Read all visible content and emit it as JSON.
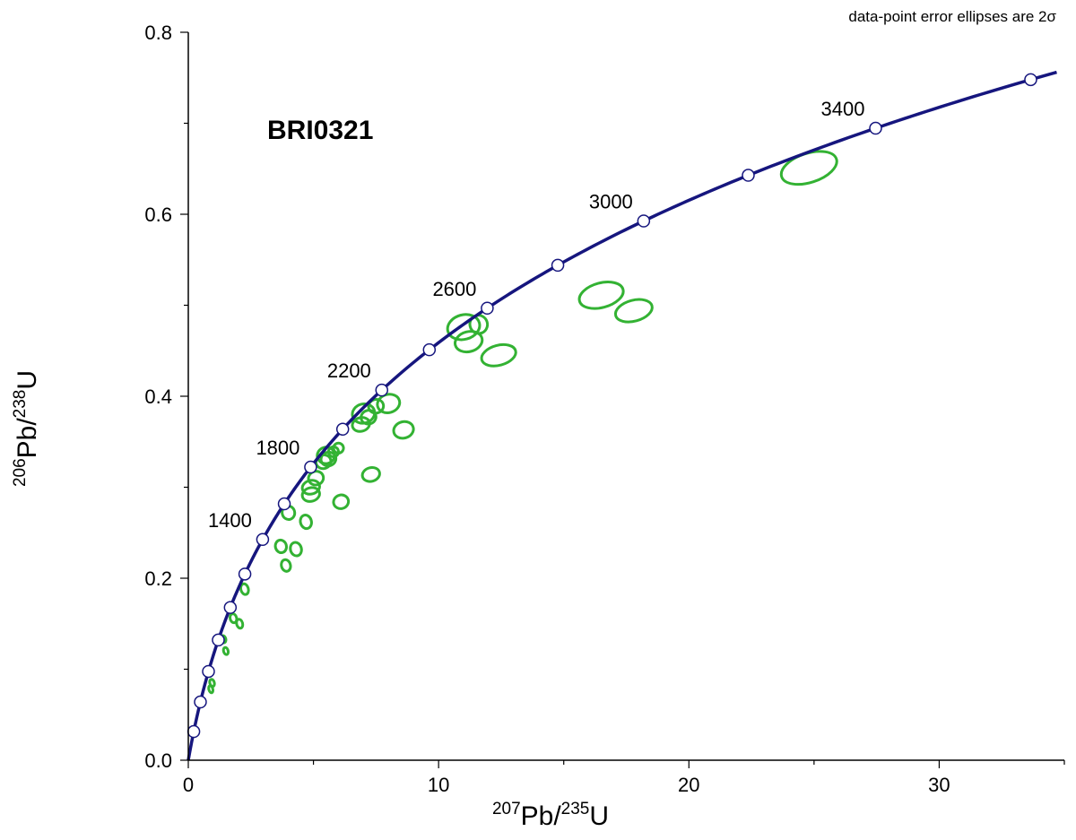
{
  "chart_data": {
    "type": "scatter",
    "title": "",
    "sample_label": "BRI0321",
    "annotation": "data-point error ellipses are 2σ",
    "xlabel": {
      "pb_mass": "207",
      "pb": "Pb/",
      "u_mass": "235",
      "u": "U"
    },
    "ylabel": {
      "pb_mass": "206",
      "pb": "Pb/",
      "u_mass": "238",
      "u": "U"
    },
    "xlim": [
      0,
      35
    ],
    "ylim": [
      0,
      0.8
    ],
    "x_ticks": [
      {
        "value": 0,
        "label": "0"
      },
      {
        "value": 10,
        "label": "10"
      },
      {
        "value": 20,
        "label": "20"
      },
      {
        "value": 30,
        "label": "30"
      }
    ],
    "y_ticks": [
      {
        "value": 0,
        "label": "0.0"
      },
      {
        "value": 0.2,
        "label": "0.2"
      },
      {
        "value": 0.4,
        "label": "0.4"
      },
      {
        "value": 0.6,
        "label": "0.6"
      },
      {
        "value": 0.8,
        "label": "0.8"
      }
    ],
    "grid": false,
    "colors": {
      "concordia": "#16167e",
      "ellipse": "#33b233",
      "marker_fill": "#ffffff",
      "marker_stroke": "#16167e",
      "axis": "#000000"
    },
    "concordia": {
      "age_range_ma": [
        0,
        3750
      ],
      "decay_constants": {
        "U238": 1.55125e-10,
        "U235": 9.8485e-10
      },
      "markers_ma": [
        200,
        400,
        600,
        800,
        1000,
        1200,
        1400,
        1600,
        1800,
        2000,
        2200,
        2400,
        2600,
        2800,
        3000,
        3200,
        3400,
        3600
      ],
      "labeled_ages": [
        {
          "age": 1400,
          "label": "1400"
        },
        {
          "age": 1800,
          "label": "1800"
        },
        {
          "age": 2200,
          "label": "2200"
        },
        {
          "age": 2600,
          "label": "2600"
        },
        {
          "age": 3000,
          "label": "3000"
        },
        {
          "age": 3400,
          "label": "3400"
        }
      ]
    },
    "ellipses": [
      {
        "x": 24.8,
        "y": 0.651,
        "rx": 1.15,
        "ry": 0.016,
        "angle": 18
      },
      {
        "x": 16.5,
        "y": 0.511,
        "rx": 0.9,
        "ry": 0.0135,
        "angle": 15
      },
      {
        "x": 17.8,
        "y": 0.494,
        "rx": 0.75,
        "ry": 0.0115,
        "angle": 15
      },
      {
        "x": 11.0,
        "y": 0.476,
        "rx": 0.65,
        "ry": 0.0135,
        "angle": 15
      },
      {
        "x": 11.6,
        "y": 0.479,
        "rx": 0.35,
        "ry": 0.01,
        "angle": 15
      },
      {
        "x": 11.2,
        "y": 0.46,
        "rx": 0.55,
        "ry": 0.011,
        "angle": 15
      },
      {
        "x": 12.4,
        "y": 0.445,
        "rx": 0.7,
        "ry": 0.011,
        "angle": 15
      },
      {
        "x": 8.0,
        "y": 0.392,
        "rx": 0.45,
        "ry": 0.01,
        "angle": 15
      },
      {
        "x": 7.5,
        "y": 0.389,
        "rx": 0.3,
        "ry": 0.0075,
        "angle": 15
      },
      {
        "x": 7.0,
        "y": 0.381,
        "rx": 0.45,
        "ry": 0.0105,
        "angle": 15
      },
      {
        "x": 7.2,
        "y": 0.377,
        "rx": 0.3,
        "ry": 0.0075,
        "angle": 15
      },
      {
        "x": 6.9,
        "y": 0.369,
        "rx": 0.35,
        "ry": 0.0075,
        "angle": 15
      },
      {
        "x": 8.6,
        "y": 0.363,
        "rx": 0.4,
        "ry": 0.009,
        "angle": 15
      },
      {
        "x": 5.5,
        "y": 0.335,
        "rx": 0.35,
        "ry": 0.009,
        "angle": 15
      },
      {
        "x": 5.4,
        "y": 0.328,
        "rx": 0.3,
        "ry": 0.0075,
        "angle": 15
      },
      {
        "x": 5.6,
        "y": 0.331,
        "rx": 0.3,
        "ry": 0.0075,
        "angle": 15
      },
      {
        "x": 5.8,
        "y": 0.339,
        "rx": 0.2,
        "ry": 0.0055,
        "angle": 15
      },
      {
        "x": 6.0,
        "y": 0.343,
        "rx": 0.2,
        "ry": 0.0055,
        "angle": 15
      },
      {
        "x": 5.1,
        "y": 0.31,
        "rx": 0.3,
        "ry": 0.0075,
        "angle": 15
      },
      {
        "x": 4.9,
        "y": 0.3,
        "rx": 0.35,
        "ry": 0.0075,
        "angle": 15
      },
      {
        "x": 4.9,
        "y": 0.292,
        "rx": 0.35,
        "ry": 0.0075,
        "angle": 15
      },
      {
        "x": 7.3,
        "y": 0.314,
        "rx": 0.35,
        "ry": 0.0075,
        "angle": 15
      },
      {
        "x": 6.1,
        "y": 0.284,
        "rx": 0.3,
        "ry": 0.0075,
        "angle": 15
      },
      {
        "x": 4.0,
        "y": 0.272,
        "rx": 0.25,
        "ry": 0.0075,
        "angle": 15
      },
      {
        "x": 4.7,
        "y": 0.262,
        "rx": 0.22,
        "ry": 0.0075,
        "angle": 15
      },
      {
        "x": 3.7,
        "y": 0.235,
        "rx": 0.22,
        "ry": 0.007,
        "angle": 15
      },
      {
        "x": 4.3,
        "y": 0.232,
        "rx": 0.22,
        "ry": 0.0075,
        "angle": 15
      },
      {
        "x": 3.9,
        "y": 0.214,
        "rx": 0.18,
        "ry": 0.0065,
        "angle": 15
      },
      {
        "x": 2.25,
        "y": 0.188,
        "rx": 0.15,
        "ry": 0.006,
        "angle": 15
      },
      {
        "x": 1.8,
        "y": 0.156,
        "rx": 0.13,
        "ry": 0.005,
        "angle": 15
      },
      {
        "x": 2.05,
        "y": 0.15,
        "rx": 0.12,
        "ry": 0.005,
        "angle": 15
      },
      {
        "x": 1.4,
        "y": 0.133,
        "rx": 0.1,
        "ry": 0.004,
        "angle": 15
      },
      {
        "x": 1.5,
        "y": 0.12,
        "rx": 0.09,
        "ry": 0.004,
        "angle": 15
      },
      {
        "x": 0.95,
        "y": 0.085,
        "rx": 0.09,
        "ry": 0.004,
        "angle": 15
      },
      {
        "x": 0.9,
        "y": 0.078,
        "rx": 0.08,
        "ry": 0.004,
        "angle": 15
      }
    ]
  }
}
